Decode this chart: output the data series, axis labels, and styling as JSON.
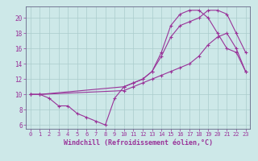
{
  "background_color": "#cde8e8",
  "grid_color": "#aacccc",
  "line_color": "#993399",
  "marker": "+",
  "markersize": 3,
  "linewidth": 0.8,
  "xlabel": "Windchill (Refroidissement éolien,°C)",
  "xlabel_fontsize": 6,
  "tick_fontsize": 5,
  "ylabel_ticks": [
    6,
    8,
    10,
    12,
    14,
    16,
    18,
    20
  ],
  "xlim": [
    -0.5,
    23.5
  ],
  "ylim": [
    5.5,
    21.5
  ],
  "xtick_labels": [
    "0",
    "1",
    "2",
    "3",
    "4",
    "5",
    "6",
    "7",
    "8",
    "9",
    "10",
    "11",
    "12",
    "13",
    "14",
    "15",
    "16",
    "17",
    "18",
    "19",
    "20",
    "21",
    "22",
    "23"
  ],
  "line1_x": [
    0,
    1,
    2,
    3,
    4,
    5,
    6,
    7,
    8,
    9,
    10,
    11,
    12,
    13,
    14,
    15,
    16,
    17,
    18,
    19,
    20,
    21,
    22,
    23
  ],
  "line1_y": [
    10,
    10,
    9.5,
    8.5,
    8.5,
    7.5,
    7.0,
    6.5,
    6.0,
    9.5,
    11.0,
    11.5,
    12.0,
    13.0,
    15.0,
    17.5,
    19.0,
    19.5,
    20.0,
    21.0,
    21.0,
    20.5,
    18.0,
    15.5
  ],
  "line2_x": [
    0,
    1,
    10,
    11,
    12,
    13,
    14,
    15,
    16,
    17,
    18,
    19,
    20,
    21,
    22,
    23
  ],
  "line2_y": [
    10,
    10,
    11.0,
    11.5,
    12.0,
    13.0,
    15.5,
    19.0,
    20.5,
    21.0,
    21.0,
    20.0,
    18.0,
    16.0,
    15.5,
    13.0
  ],
  "line3_x": [
    0,
    1,
    10,
    11,
    12,
    13,
    14,
    15,
    16,
    17,
    18,
    19,
    20,
    21,
    22,
    23
  ],
  "line3_y": [
    10,
    10,
    10.5,
    11.0,
    11.5,
    12.0,
    12.5,
    13.0,
    13.5,
    14.0,
    15.0,
    16.5,
    17.5,
    18.0,
    16.0,
    13.0
  ]
}
